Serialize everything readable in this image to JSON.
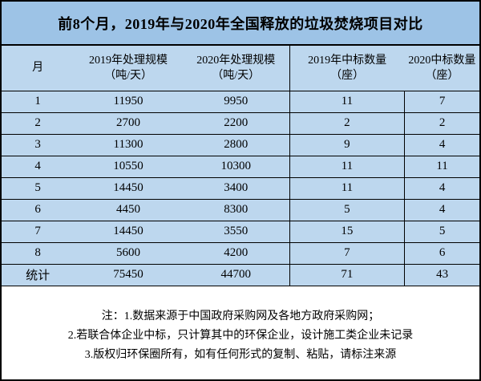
{
  "title": "前8个月，2019年与2020年全国释放的垃圾焚烧项目对比",
  "colors": {
    "title_bg": "#9dc3e6",
    "table_bg": "#bdd7ee",
    "border": "#000000",
    "notes_bg": "#ffffff"
  },
  "table": {
    "columns": [
      {
        "label": "月",
        "sub": ""
      },
      {
        "label": "2019年处理规模",
        "sub": "（吨/天）"
      },
      {
        "label": "2020年处理规模",
        "sub": "（吨/天）"
      },
      {
        "label": "2019年中标数量",
        "sub": "（座）"
      },
      {
        "label": "2020中标数量",
        "sub": "（座）"
      }
    ],
    "rows": [
      [
        "1",
        "11950",
        "9950",
        "11",
        "7"
      ],
      [
        "2",
        "2700",
        "2200",
        "2",
        "2"
      ],
      [
        "3",
        "11300",
        "2800",
        "9",
        "4"
      ],
      [
        "4",
        "10550",
        "10300",
        "11",
        "11"
      ],
      [
        "5",
        "14450",
        "3400",
        "11",
        "4"
      ],
      [
        "6",
        "4450",
        "8300",
        "5",
        "4"
      ],
      [
        "7",
        "14450",
        "3550",
        "15",
        "5"
      ],
      [
        "8",
        "5600",
        "4200",
        "7",
        "6"
      ]
    ],
    "summary": [
      "统计",
      "75450",
      "44700",
      "71",
      "43"
    ]
  },
  "notes": [
    "注：1.数据来源于中国政府采购网及各地方政府采购网；",
    "2.若联合体企业中标，只计算其中的环保企业，设计施工类企业未记录",
    "3.版权归环保圈所有，如有任何形式的复制、粘贴，请标注来源"
  ],
  "chart_data": {
    "type": "table",
    "title": "前8个月，2019年与2020年全国释放的垃圾焚烧项目对比",
    "columns": [
      "月",
      "2019年处理规模（吨/天）",
      "2020年处理规模（吨/天）",
      "2019年中标数量（座）",
      "2020中标数量（座）"
    ],
    "months": [
      1,
      2,
      3,
      4,
      5,
      6,
      7,
      8
    ],
    "series": [
      {
        "name": "2019年处理规模（吨/天）",
        "values": [
          11950,
          2700,
          11300,
          10550,
          14450,
          4450,
          14450,
          5600
        ],
        "total": 75450
      },
      {
        "name": "2020年处理规模（吨/天）",
        "values": [
          9950,
          2200,
          2800,
          10300,
          3400,
          8300,
          3550,
          4200
        ],
        "total": 44700
      },
      {
        "name": "2019年中标数量（座）",
        "values": [
          11,
          2,
          9,
          11,
          11,
          5,
          15,
          7
        ],
        "total": 71
      },
      {
        "name": "2020中标数量（座）",
        "values": [
          7,
          2,
          4,
          11,
          4,
          4,
          5,
          6
        ],
        "total": 43
      }
    ],
    "summary_row_label": "统计",
    "layout": {
      "grid": "horizontal lines all rows; vertical dividers between year groups",
      "legend": "none"
    }
  }
}
